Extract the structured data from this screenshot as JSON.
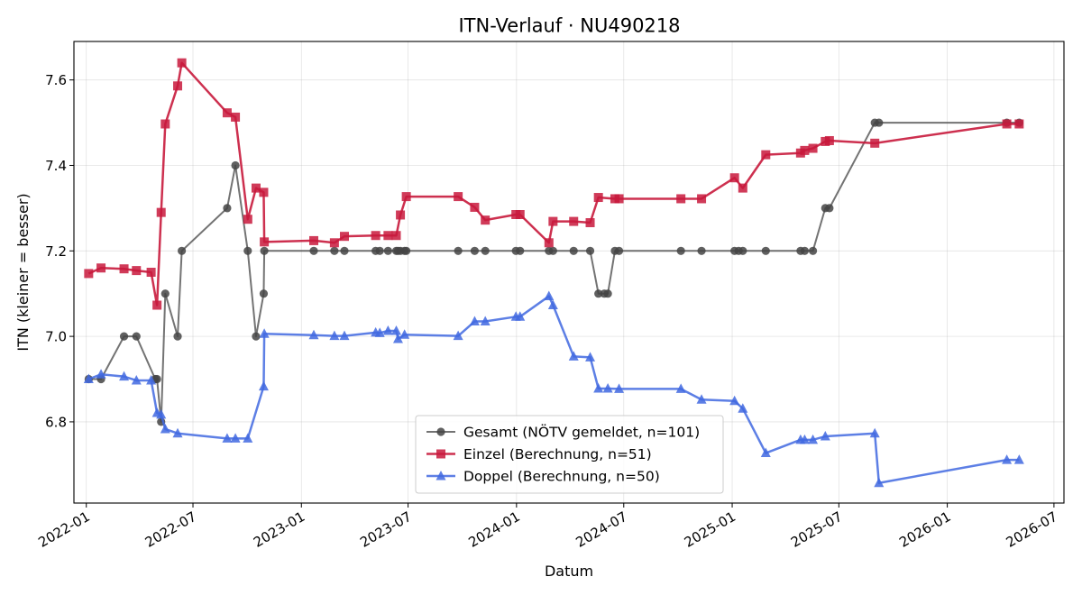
{
  "chart_data": {
    "type": "line",
    "title": "ITN-Verlauf · NU490218",
    "xlabel": "Datum",
    "ylabel": "ITN  (kleiner = besser)",
    "x_type": "date",
    "xlim": [
      "2021-12-11",
      "2026-07-18"
    ],
    "ylim": [
      6.61,
      7.69
    ],
    "x_ticks": [
      "2022-01",
      "2022-07",
      "2023-01",
      "2023-07",
      "2024-01",
      "2024-07",
      "2025-01",
      "2025-07",
      "2026-01",
      "2026-07"
    ],
    "y_ticks": [
      6.8,
      7.0,
      7.2,
      7.4,
      7.6
    ],
    "y_tick_labels": [
      "6.8",
      "7.0",
      "7.2",
      "7.4",
      "7.6"
    ],
    "grid": true,
    "legend_position": "lower center",
    "series": [
      {
        "name": "Gesamt (NÖTV gemeldet, n=101)",
        "color": "#444444",
        "marker": "circle",
        "points": [
          [
            "2022-01-05",
            6.9
          ],
          [
            "2022-01-26",
            6.9
          ],
          [
            "2022-03-06",
            7.0
          ],
          [
            "2022-03-27",
            7.0
          ],
          [
            "2022-04-28",
            6.9
          ],
          [
            "2022-05-01",
            6.9
          ],
          [
            "2022-05-08",
            6.8
          ],
          [
            "2022-05-15",
            7.1
          ],
          [
            "2022-06-05",
            7.0
          ],
          [
            "2022-06-12",
            7.2
          ],
          [
            "2022-08-28",
            7.3
          ],
          [
            "2022-09-11",
            7.4
          ],
          [
            "2022-10-02",
            7.2
          ],
          [
            "2022-10-16",
            7.0
          ],
          [
            "2022-10-29",
            7.1
          ],
          [
            "2022-10-30",
            7.2
          ],
          [
            "2023-01-22",
            7.2
          ],
          [
            "2023-02-26",
            7.2
          ],
          [
            "2023-03-15",
            7.2
          ],
          [
            "2023-05-07",
            7.2
          ],
          [
            "2023-05-14",
            7.2
          ],
          [
            "2023-05-28",
            7.2
          ],
          [
            "2023-06-11",
            7.2
          ],
          [
            "2023-06-14",
            7.2
          ],
          [
            "2023-06-18",
            7.2
          ],
          [
            "2023-06-25",
            7.2
          ],
          [
            "2023-06-28",
            7.2
          ],
          [
            "2023-09-24",
            7.2
          ],
          [
            "2023-10-22",
            7.2
          ],
          [
            "2023-11-09",
            7.2
          ],
          [
            "2023-12-31",
            7.2
          ],
          [
            "2024-01-07",
            7.2
          ],
          [
            "2024-02-25",
            7.2
          ],
          [
            "2024-03-03",
            7.2
          ],
          [
            "2024-04-07",
            7.2
          ],
          [
            "2024-05-05",
            7.2
          ],
          [
            "2024-05-19",
            7.1
          ],
          [
            "2024-05-29",
            7.1
          ],
          [
            "2024-06-04",
            7.1
          ],
          [
            "2024-06-16",
            7.2
          ],
          [
            "2024-06-23",
            7.2
          ],
          [
            "2024-10-06",
            7.2
          ],
          [
            "2024-11-10",
            7.2
          ],
          [
            "2025-01-05",
            7.2
          ],
          [
            "2025-01-12",
            7.2
          ],
          [
            "2025-01-19",
            7.2
          ],
          [
            "2025-02-27",
            7.2
          ],
          [
            "2025-04-27",
            7.2
          ],
          [
            "2025-05-04",
            7.2
          ],
          [
            "2025-05-18",
            7.2
          ],
          [
            "2025-06-08",
            7.3
          ],
          [
            "2025-06-15",
            7.3
          ],
          [
            "2025-08-31",
            7.5
          ],
          [
            "2025-09-07",
            7.5
          ],
          [
            "2026-04-12",
            7.5
          ],
          [
            "2026-05-03",
            7.5
          ]
        ]
      },
      {
        "name": "Einzel (Berechnung, n=51)",
        "color": "#c8193c",
        "marker": "square",
        "points": [
          [
            "2022-01-05",
            7.147
          ],
          [
            "2022-01-26",
            7.16
          ],
          [
            "2022-03-06",
            7.158
          ],
          [
            "2022-03-27",
            7.154
          ],
          [
            "2022-04-21",
            7.15
          ],
          [
            "2022-05-01",
            7.073
          ],
          [
            "2022-05-08",
            7.29
          ],
          [
            "2022-05-15",
            7.497
          ],
          [
            "2022-06-05",
            7.586
          ],
          [
            "2022-06-12",
            7.64
          ],
          [
            "2022-08-28",
            7.523
          ],
          [
            "2022-09-11",
            7.513
          ],
          [
            "2022-10-02",
            7.274
          ],
          [
            "2022-10-16",
            7.347
          ],
          [
            "2022-10-29",
            7.337
          ],
          [
            "2022-10-30",
            7.221
          ],
          [
            "2023-01-22",
            7.224
          ],
          [
            "2023-02-26",
            7.219
          ],
          [
            "2023-03-15",
            7.234
          ],
          [
            "2023-05-07",
            7.236
          ],
          [
            "2023-05-28",
            7.236
          ],
          [
            "2023-06-11",
            7.236
          ],
          [
            "2023-06-18",
            7.284
          ],
          [
            "2023-06-28",
            7.327
          ],
          [
            "2023-09-24",
            7.327
          ],
          [
            "2023-10-22",
            7.302
          ],
          [
            "2023-11-09",
            7.272
          ],
          [
            "2023-12-31",
            7.285
          ],
          [
            "2024-01-07",
            7.285
          ],
          [
            "2024-02-25",
            7.219
          ],
          [
            "2024-03-03",
            7.269
          ],
          [
            "2024-04-07",
            7.269
          ],
          [
            "2024-05-05",
            7.266
          ],
          [
            "2024-05-19",
            7.325
          ],
          [
            "2024-06-16",
            7.322
          ],
          [
            "2024-06-23",
            7.322
          ],
          [
            "2024-10-06",
            7.322
          ],
          [
            "2024-11-10",
            7.322
          ],
          [
            "2025-01-05",
            7.371
          ],
          [
            "2025-01-19",
            7.347
          ],
          [
            "2025-02-27",
            7.425
          ],
          [
            "2025-04-27",
            7.429
          ],
          [
            "2025-05-04",
            7.435
          ],
          [
            "2025-05-18",
            7.44
          ],
          [
            "2025-06-08",
            7.456
          ],
          [
            "2025-06-15",
            7.458
          ],
          [
            "2025-08-31",
            7.452
          ],
          [
            "2026-04-12",
            7.497
          ],
          [
            "2026-05-03",
            7.497
          ]
        ]
      },
      {
        "name": "Doppel (Berechnung, n=50)",
        "color": "#4169e1",
        "marker": "triangle",
        "points": [
          [
            "2022-01-05",
            6.9
          ],
          [
            "2022-01-26",
            6.911
          ],
          [
            "2022-03-06",
            6.906
          ],
          [
            "2022-03-27",
            6.897
          ],
          [
            "2022-04-21",
            6.897
          ],
          [
            "2022-05-01",
            6.821
          ],
          [
            "2022-05-08",
            6.817
          ],
          [
            "2022-05-15",
            6.783
          ],
          [
            "2022-06-05",
            6.773
          ],
          [
            "2022-08-28",
            6.761
          ],
          [
            "2022-09-11",
            6.761
          ],
          [
            "2022-10-02",
            6.761
          ],
          [
            "2022-10-29",
            6.883
          ],
          [
            "2022-10-30",
            7.006
          ],
          [
            "2023-01-22",
            7.003
          ],
          [
            "2023-02-26",
            7.001
          ],
          [
            "2023-03-15",
            7.001
          ],
          [
            "2023-05-07",
            7.009
          ],
          [
            "2023-05-14",
            7.008
          ],
          [
            "2023-05-28",
            7.013
          ],
          [
            "2023-06-11",
            7.013
          ],
          [
            "2023-06-14",
            6.994
          ],
          [
            "2023-06-25",
            7.004
          ],
          [
            "2023-09-24",
            7.001
          ],
          [
            "2023-10-22",
            7.035
          ],
          [
            "2023-11-09",
            7.035
          ],
          [
            "2023-12-31",
            7.046
          ],
          [
            "2024-01-07",
            7.046
          ],
          [
            "2024-02-25",
            7.094
          ],
          [
            "2024-03-03",
            7.073
          ],
          [
            "2024-04-07",
            6.953
          ],
          [
            "2024-05-05",
            6.951
          ],
          [
            "2024-05-19",
            6.878
          ],
          [
            "2024-06-04",
            6.878
          ],
          [
            "2024-06-23",
            6.877
          ],
          [
            "2024-10-06",
            6.877
          ],
          [
            "2024-11-10",
            6.852
          ],
          [
            "2025-01-05",
            6.849
          ],
          [
            "2025-01-19",
            6.831
          ],
          [
            "2025-02-27",
            6.727
          ],
          [
            "2025-04-27",
            6.758
          ],
          [
            "2025-05-04",
            6.758
          ],
          [
            "2025-05-18",
            6.758
          ],
          [
            "2025-06-08",
            6.766
          ],
          [
            "2025-08-31",
            6.773
          ],
          [
            "2025-09-07",
            6.657
          ],
          [
            "2026-04-12",
            6.711
          ],
          [
            "2026-05-03",
            6.711
          ]
        ]
      }
    ]
  }
}
